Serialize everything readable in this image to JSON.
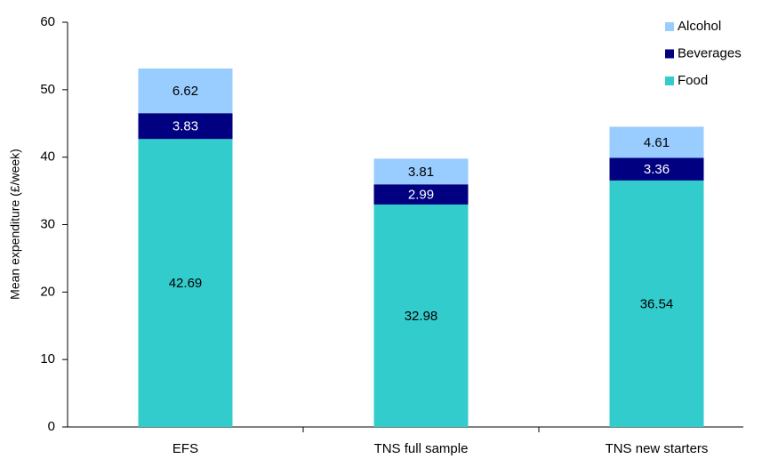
{
  "chart_data": {
    "type": "stacked_bar",
    "y_label": "Mean expenditure (£/week)",
    "categories": [
      "EFS",
      "TNS full sample",
      "TNS new starters"
    ],
    "series": [
      {
        "name": "Food",
        "color": "#33cccc",
        "label_color": "#000000",
        "values": [
          42.69,
          32.98,
          36.54
        ]
      },
      {
        "name": "Beverages",
        "color": "#000080",
        "label_color": "#ffffff",
        "values": [
          3.83,
          2.99,
          3.36
        ]
      },
      {
        "name": "Alcohol",
        "color": "#99ccff",
        "label_color": "#000000",
        "values": [
          6.62,
          3.81,
          4.61
        ]
      }
    ],
    "ylim": [
      0,
      60
    ],
    "yticks": [
      0,
      10,
      20,
      30,
      40,
      50,
      60
    ],
    "grid": false,
    "legend": "top-right"
  }
}
